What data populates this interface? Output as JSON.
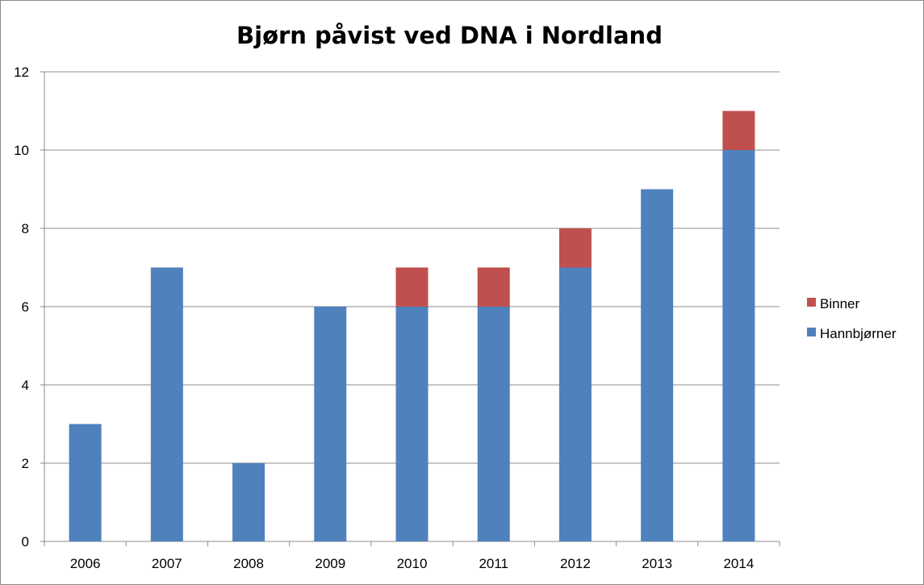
{
  "chart_data": {
    "type": "bar",
    "stacked": true,
    "title": "Bjørn påvist ved DNA i Nordland",
    "xlabel": "",
    "ylabel": "",
    "categories": [
      "2006",
      "2007",
      "2008",
      "2009",
      "2010",
      "2011",
      "2012",
      "2013",
      "2014"
    ],
    "series": [
      {
        "name": "Hannbjørner",
        "color": "#4f81bd",
        "values": [
          3,
          7,
          2,
          6,
          6,
          6,
          7,
          9,
          10
        ]
      },
      {
        "name": "Binner",
        "color": "#c0504d",
        "values": [
          0,
          0,
          0,
          0,
          1,
          1,
          1,
          0,
          1
        ]
      }
    ],
    "ylim": [
      0,
      12
    ],
    "yticks": [
      0,
      2,
      4,
      6,
      8,
      10,
      12
    ],
    "grid": true,
    "legend_position": "right",
    "legend_order": [
      "Binner",
      "Hannbjørner"
    ]
  }
}
